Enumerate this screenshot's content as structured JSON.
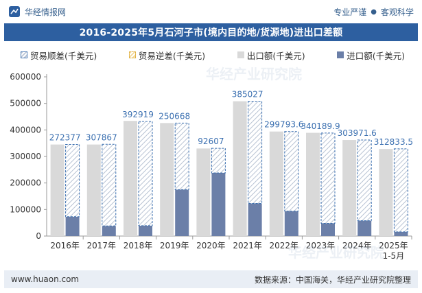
{
  "header": {
    "brand": "华经情报网",
    "tag1": "专业严谨",
    "tag2": "客观科学"
  },
  "title": "2016-2025年5月石河子市(境内目的地/货源地)进出口差额",
  "legend": {
    "surplus": "贸易顺差(千美元)",
    "deficit": "贸易逆差(千美元)",
    "export": "出口额(千美元)",
    "import": "进口额(千美元)"
  },
  "watermark": "华经产业研究院",
  "footer": {
    "website": "www.huaon.com",
    "source": "数据来源：中国海关，华经产业研究院整理"
  },
  "colors": {
    "export": "#d9d9d9",
    "import": "#6b7fa8",
    "surplus_border": "#3a6fb0",
    "label": "#3a6fb0",
    "title_bg": "#2d5fa0"
  },
  "chart_data": {
    "type": "bar",
    "categories": [
      "2016年",
      "2017年",
      "2018年",
      "2019年",
      "2020年",
      "2021年",
      "2022年",
      "2023年",
      "2024年",
      "2025年\n1-5月"
    ],
    "ylim": [
      0,
      600000
    ],
    "yticks": [
      0,
      100000,
      200000,
      300000,
      400000,
      500000,
      600000
    ],
    "series": [
      {
        "name": "出口额(千美元)",
        "values": [
          345000,
          345000,
          434000,
          426000,
          330000,
          508000,
          394000,
          389000,
          362000,
          328000
        ]
      },
      {
        "name": "进口额(千美元)",
        "values": [
          73000,
          38000,
          39000,
          175000,
          238000,
          123000,
          94000,
          48000,
          58000,
          16000
        ]
      },
      {
        "name": "贸易顺差(千美元)",
        "values": [
          272377,
          307867,
          392919,
          250668,
          92607,
          385027,
          299793.6,
          340189.9,
          303971.6,
          312833.5
        ]
      }
    ],
    "labels": [
      "272377",
      "307867",
      "392919",
      "250668",
      "92607",
      "385027",
      "299793.6",
      "340189.9",
      "303971.6",
      "312833.5"
    ],
    "legend_position": "top",
    "grid": false
  }
}
